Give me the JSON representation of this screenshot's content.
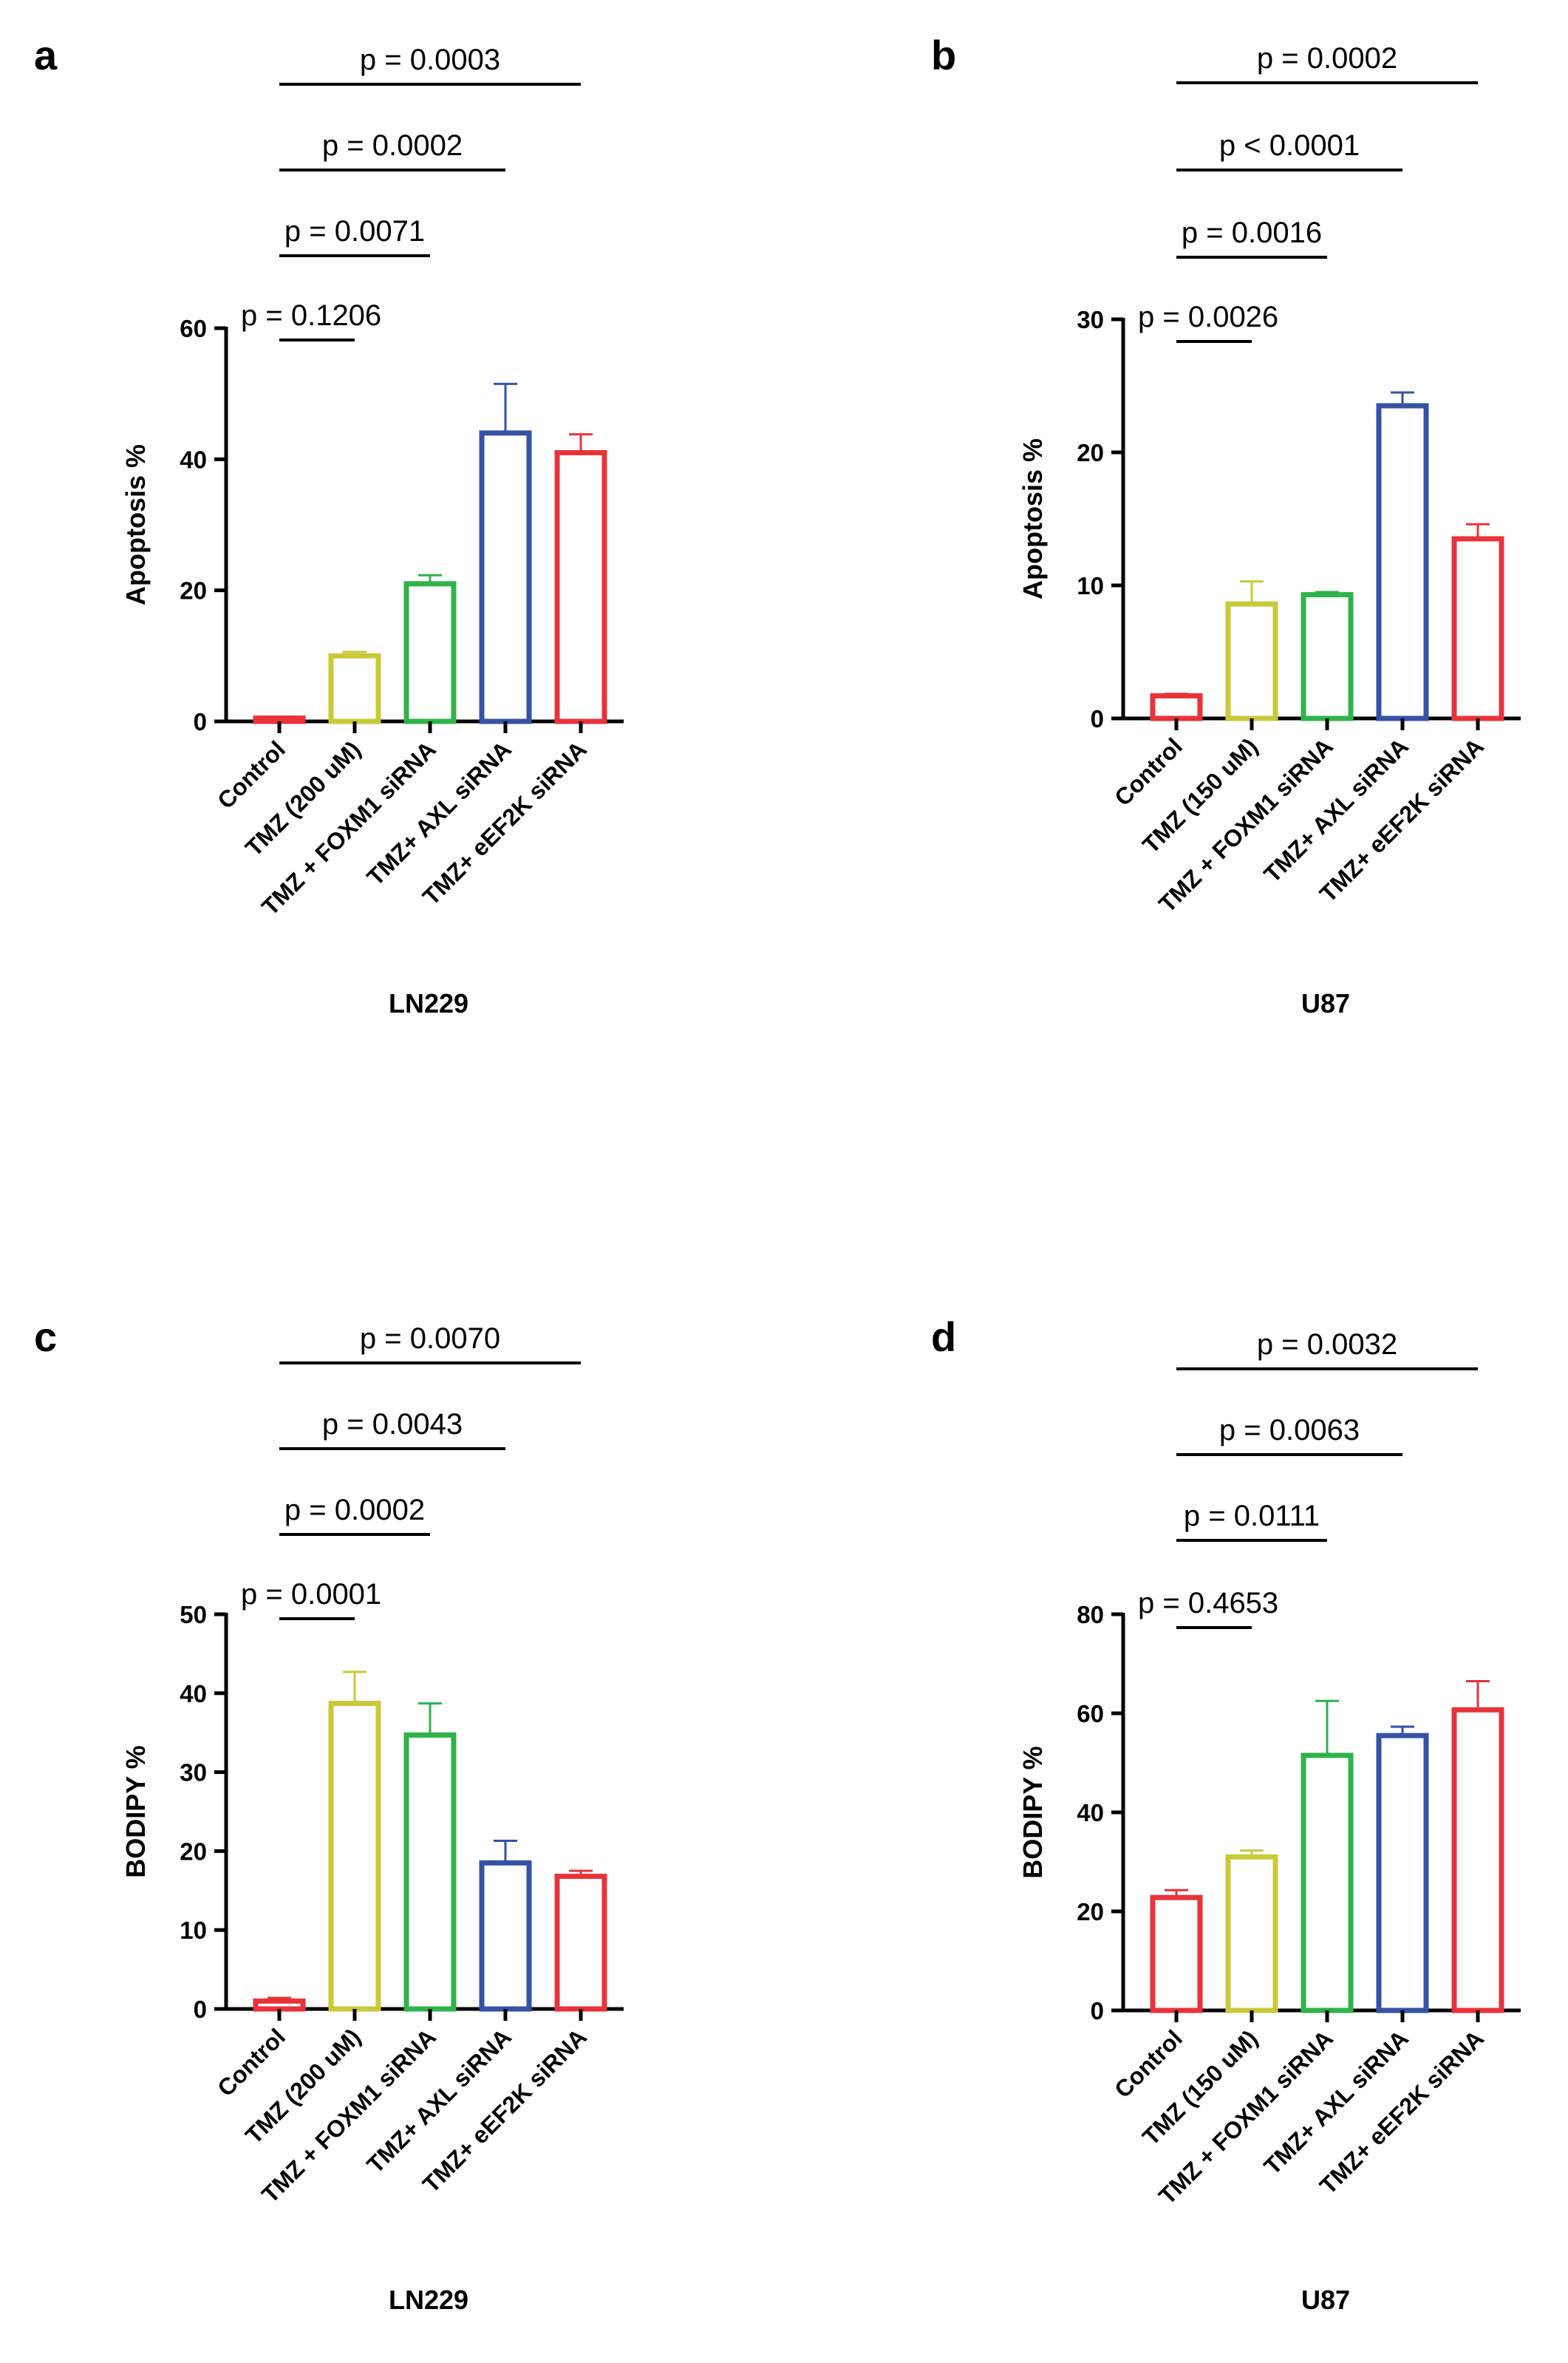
{
  "colors": {
    "red": "#e8333a",
    "yellow": "#c9c93a",
    "green": "#2fb34a",
    "blue": "#3652a4",
    "axis": "#000000"
  },
  "chart_data": [
    {
      "panel_label": "a",
      "type": "bar",
      "xlabel": "LN229",
      "ylabel": "Apoptosis %",
      "ylim": [
        0,
        60
      ],
      "yticks": [
        0,
        20,
        40,
        60
      ],
      "categories": [
        "Control",
        "TMZ (200 uM)",
        "TMZ + FOXM1 siRNA",
        "TMZ+ AXL siRNA",
        "TMZ+ eEF2K siRNA"
      ],
      "values": [
        0.5,
        10,
        21,
        44,
        41
      ],
      "errors": [
        0.2,
        0.6,
        1.3,
        7.5,
        2.8
      ],
      "bar_colors": [
        "red",
        "yellow",
        "green",
        "blue",
        "red"
      ],
      "comparisons": [
        {
          "from": 0,
          "to": 1,
          "label": "p = 0.1206"
        },
        {
          "from": 0,
          "to": 2,
          "label": "p = 0.0071"
        },
        {
          "from": 0,
          "to": 3,
          "label": "p = 0.0002"
        },
        {
          "from": 0,
          "to": 4,
          "label": "p = 0.0003"
        }
      ]
    },
    {
      "panel_label": "b",
      "type": "bar",
      "xlabel": "U87",
      "ylabel": "Apoptosis %",
      "ylim": [
        0,
        30
      ],
      "yticks": [
        0,
        10,
        20,
        30
      ],
      "categories": [
        "Control",
        "TMZ (150 uM)",
        "TMZ + FOXM1 siRNA",
        "TMZ+ AXL siRNA",
        "TMZ+ eEF2K siRNA"
      ],
      "values": [
        1.7,
        8.6,
        9.3,
        23.5,
        13.5
      ],
      "errors": [
        0.15,
        1.7,
        0.2,
        1.0,
        1.1
      ],
      "bar_colors": [
        "red",
        "yellow",
        "green",
        "blue",
        "red"
      ],
      "comparisons": [
        {
          "from": 0,
          "to": 1,
          "label": "p = 0.0026"
        },
        {
          "from": 0,
          "to": 2,
          "label": "p = 0.0016"
        },
        {
          "from": 0,
          "to": 3,
          "label": "p < 0.0001"
        },
        {
          "from": 0,
          "to": 4,
          "label": "p = 0.0002"
        }
      ]
    },
    {
      "panel_label": "c",
      "type": "bar",
      "xlabel": "LN229",
      "ylabel": "BODIPY %",
      "ylim": [
        0,
        50
      ],
      "yticks": [
        0,
        10,
        20,
        30,
        40,
        50
      ],
      "categories": [
        "Control",
        "TMZ (200 uM)",
        "TMZ + FOXM1 siRNA",
        "TMZ+ AXL siRNA",
        "TMZ+ eEF2K siRNA"
      ],
      "values": [
        1.0,
        38.7,
        34.7,
        18.5,
        16.8
      ],
      "errors": [
        0.4,
        4.0,
        4.0,
        2.8,
        0.7
      ],
      "bar_colors": [
        "red",
        "yellow",
        "green",
        "blue",
        "red"
      ],
      "comparisons": [
        {
          "from": 0,
          "to": 1,
          "label": "p = 0.0001"
        },
        {
          "from": 0,
          "to": 2,
          "label": "p = 0.0002"
        },
        {
          "from": 0,
          "to": 3,
          "label": "p = 0.0043"
        },
        {
          "from": 0,
          "to": 4,
          "label": "p = 0.0070"
        }
      ]
    },
    {
      "panel_label": "d",
      "type": "bar",
      "xlabel": "U87",
      "ylabel": "BODIPY %",
      "ylim": [
        0,
        80
      ],
      "yticks": [
        0,
        20,
        40,
        60,
        80
      ],
      "categories": [
        "Control",
        "TMZ (150 uM)",
        "TMZ + FOXM1 siRNA",
        "TMZ+ AXL siRNA",
        "TMZ+ eEF2K siRNA"
      ],
      "values": [
        22.8,
        31,
        51.5,
        55.5,
        60.7
      ],
      "errors": [
        1.5,
        1.3,
        11.0,
        1.8,
        5.8
      ],
      "bar_colors": [
        "red",
        "yellow",
        "green",
        "blue",
        "red"
      ],
      "comparisons": [
        {
          "from": 0,
          "to": 1,
          "label": "p = 0.4653"
        },
        {
          "from": 0,
          "to": 2,
          "label": "p = 0.0111"
        },
        {
          "from": 0,
          "to": 3,
          "label": "p = 0.0063"
        },
        {
          "from": 0,
          "to": 4,
          "label": "p = 0.0032"
        }
      ]
    }
  ]
}
